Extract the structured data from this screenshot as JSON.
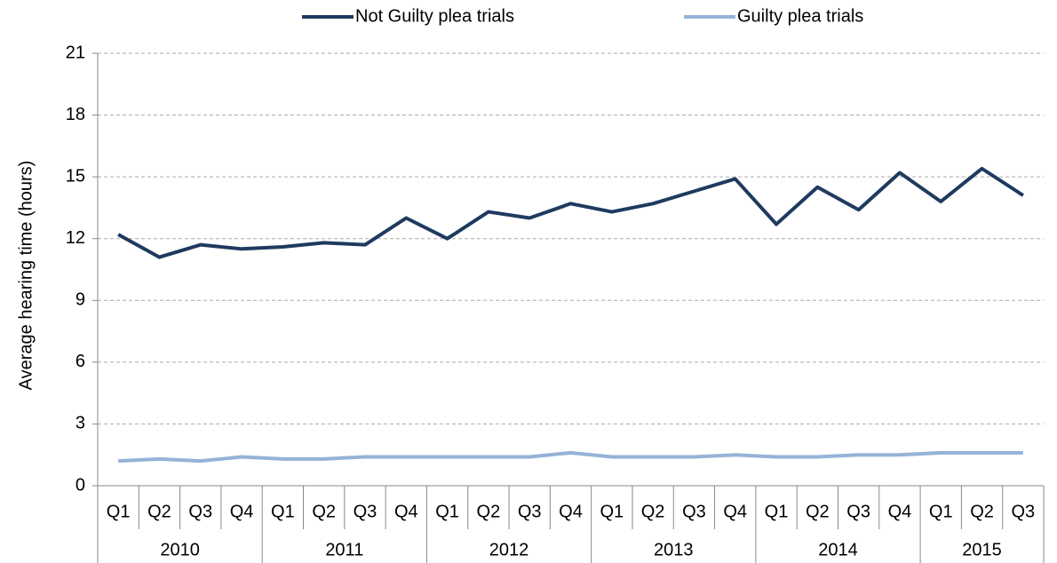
{
  "chart_data": {
    "type": "line",
    "y_label": "Average hearing time (hours)",
    "categories": [
      "Q1",
      "Q2",
      "Q3",
      "Q4",
      "Q1",
      "Q2",
      "Q3",
      "Q4",
      "Q1",
      "Q2",
      "Q3",
      "Q4",
      "Q1",
      "Q2",
      "Q3",
      "Q4",
      "Q1",
      "Q2",
      "Q3",
      "Q4",
      "Q1",
      "Q2",
      "Q3"
    ],
    "groups": [
      "2010",
      "2011",
      "2012",
      "2013",
      "2014",
      "2015"
    ],
    "series": [
      {
        "name": "Not Guilty plea trials",
        "color": "#1f3a5f",
        "values": [
          12.2,
          11.1,
          11.7,
          11.5,
          11.6,
          11.8,
          11.7,
          13.0,
          12.0,
          13.3,
          13.0,
          13.7,
          13.3,
          13.7,
          14.3,
          14.9,
          12.7,
          14.5,
          13.4,
          15.2,
          13.8,
          15.4,
          14.1
        ]
      },
      {
        "name": "Guilty plea trials",
        "color": "#95b3d7",
        "values": [
          1.2,
          1.3,
          1.2,
          1.4,
          1.3,
          1.3,
          1.4,
          1.4,
          1.4,
          1.4,
          1.4,
          1.6,
          1.4,
          1.4,
          1.4,
          1.5,
          1.4,
          1.4,
          1.5,
          1.5,
          1.6,
          1.6,
          1.6
        ]
      }
    ],
    "ylim": [
      0,
      21
    ],
    "yticks": [
      0,
      3,
      6,
      9,
      12,
      15,
      18,
      21
    ],
    "grid": true,
    "legend": "top"
  }
}
